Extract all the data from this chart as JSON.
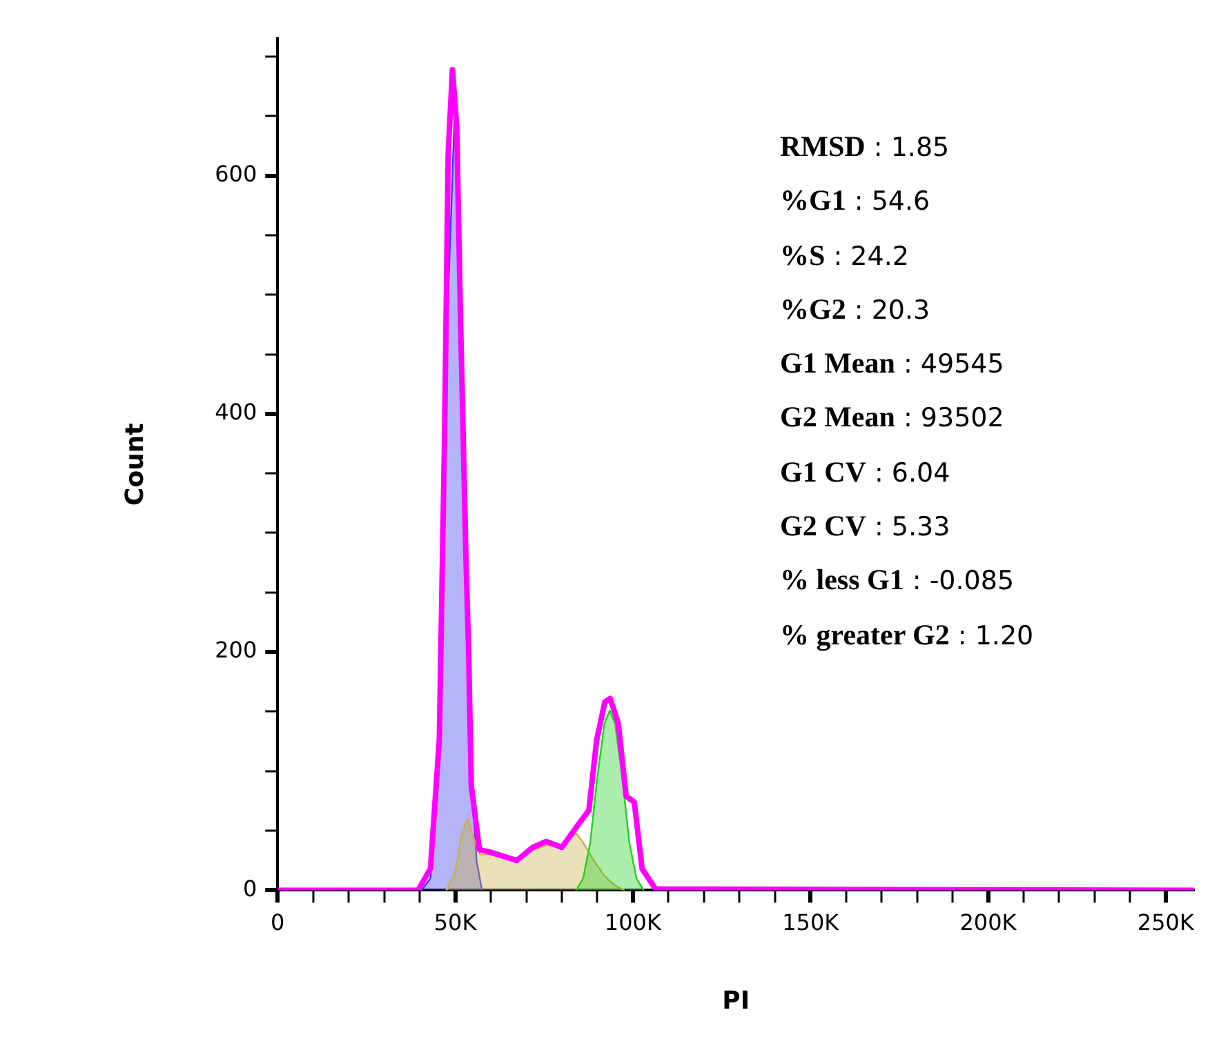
{
  "chart_data": {
    "type": "area",
    "xlabel": "PI",
    "ylabel": "Count",
    "xlim": [
      0,
      258000
    ],
    "ylim": [
      0,
      715
    ],
    "xticks": [
      0,
      {
        "value": 10000,
        "label": null
      },
      {
        "value": 20000,
        "label": null
      },
      {
        "value": 30000,
        "label": null
      },
      {
        "value": 40000,
        "label": null
      },
      {
        "value": 50000,
        "label": "50K"
      },
      {
        "value": 60000,
        "label": null
      },
      {
        "value": 70000,
        "label": null
      },
      {
        "value": 80000,
        "label": null
      },
      {
        "value": 90000,
        "label": null
      },
      {
        "value": 100000,
        "label": "100K"
      },
      {
        "value": 110000,
        "label": null
      },
      {
        "value": 120000,
        "label": null
      },
      {
        "value": 130000,
        "label": null
      },
      {
        "value": 140000,
        "label": null
      },
      {
        "value": 150000,
        "label": "150K"
      },
      {
        "value": 160000,
        "label": null
      },
      {
        "value": 170000,
        "label": null
      },
      {
        "value": 180000,
        "label": null
      },
      {
        "value": 190000,
        "label": null
      },
      {
        "value": 200000,
        "label": "200K"
      },
      {
        "value": 210000,
        "label": null
      },
      {
        "value": 220000,
        "label": null
      },
      {
        "value": 230000,
        "label": null
      },
      {
        "value": 240000,
        "label": null
      },
      {
        "value": 250000,
        "label": "250K"
      }
    ],
    "yticks": [
      0,
      {
        "value": 50,
        "label": null
      },
      {
        "value": 100,
        "label": null
      },
      {
        "value": 150,
        "label": null
      },
      200,
      {
        "value": 250,
        "label": null
      },
      {
        "value": 300,
        "label": null
      },
      {
        "value": 350,
        "label": null
      },
      400,
      {
        "value": 450,
        "label": null
      },
      {
        "value": 500,
        "label": null
      },
      {
        "value": 550,
        "label": null
      },
      600,
      {
        "value": 650,
        "label": null
      },
      {
        "value": 700,
        "label": null
      }
    ],
    "grid": false,
    "legend": false,
    "marker": "none",
    "series": [
      {
        "type": "area",
        "color": "#3a3ae8",
        "x": [
          40500,
          43000,
          45000,
          46500,
          48000,
          49900,
          51000,
          52300,
          53500,
          54500,
          56000,
          57500
        ],
        "values": [
          0,
          10,
          80,
          250,
          500,
          658,
          560,
          402,
          220,
          100,
          25,
          0
        ]
      },
      {
        "type": "area",
        "color": "#c8b048",
        "x": [
          47500,
          50000,
          52000,
          53500,
          55000,
          57000,
          60000,
          67000,
          72000,
          76000,
          80000,
          84000,
          86000,
          89000,
          92000,
          95000,
          97500
        ],
        "values": [
          0,
          15,
          50,
          60,
          45,
          30,
          30,
          25,
          34,
          38,
          36,
          48,
          40,
          25,
          12,
          4,
          0
        ]
      },
      {
        "type": "area",
        "color": "#22d022",
        "x": [
          84000,
          86000,
          88000,
          90000,
          92000,
          93500,
          95000,
          97000,
          99000,
          101000,
          103000
        ],
        "values": [
          0,
          10,
          40,
          95,
          140,
          151,
          140,
          95,
          40,
          10,
          0
        ]
      },
      {
        "type": "line",
        "color": "#ff00ff",
        "x": [
          0,
          39500,
          43000,
          45500,
          47000,
          48000,
          49200,
          50400,
          51500,
          53000,
          53800,
          54500,
          56800,
          59800,
          67300,
          71800,
          75600,
          80000,
          84600,
          87600,
          89800,
          92100,
          93600,
          95900,
          98100,
          100400,
          102600,
          106400,
          258000
        ],
        "values": [
          0,
          0,
          18,
          126,
          384,
          618,
          689,
          642,
          477,
          280,
          196,
          88,
          34,
          32,
          25,
          36,
          41,
          36,
          55,
          67,
          126,
          158,
          161,
          140,
          79,
          74,
          18,
          1,
          0
        ]
      }
    ],
    "annotations": [
      "RMSD : 1.85",
      "%G1 : 54.6",
      "%S : 24.2",
      "%G2 : 20.3",
      "G1 Mean : 49545",
      "G2 Mean : 93502",
      "G1 CV : 6.04",
      "G2 CV : 5.33",
      "% less G1 : -0.085",
      "% greater G2 : 1.20"
    ]
  }
}
